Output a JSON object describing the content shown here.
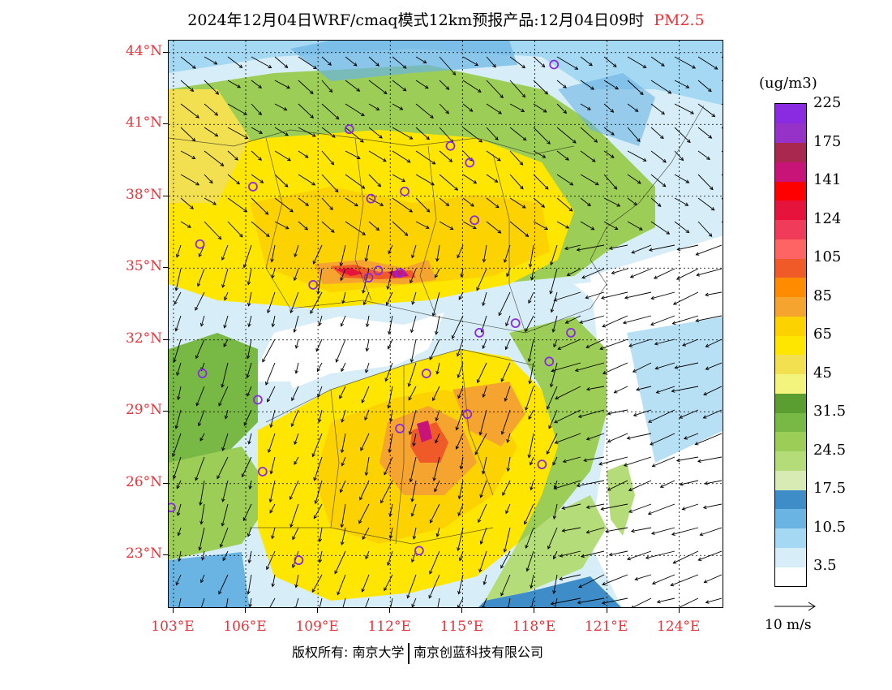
{
  "title": {
    "main": "2024年12月04日WRF/cmaq模式12km预报产品:12月04日09时",
    "pollutant": "PM2.5"
  },
  "map": {
    "lat_labels": [
      "44°N",
      "41°N",
      "38°N",
      "35°N",
      "32°N",
      "29°N",
      "26°N",
      "23°N"
    ],
    "lon_labels": [
      "103°E",
      "106°E",
      "109°E",
      "112°E",
      "115°E",
      "118°E",
      "121°E",
      "124°E"
    ],
    "lat_values": [
      44,
      41,
      38,
      35,
      32,
      29,
      26,
      23
    ],
    "lon_values": [
      103,
      106,
      109,
      112,
      115,
      118,
      121,
      124
    ],
    "cities": [
      {
        "lon": 118.8,
        "lat": 43.5
      },
      {
        "lon": 110.3,
        "lat": 40.8
      },
      {
        "lon": 114.5,
        "lat": 40.1
      },
      {
        "lon": 115.3,
        "lat": 39.4
      },
      {
        "lon": 106.3,
        "lat": 38.4
      },
      {
        "lon": 111.2,
        "lat": 37.9
      },
      {
        "lon": 112.6,
        "lat": 38.2
      },
      {
        "lon": 115.5,
        "lat": 37.0
      },
      {
        "lon": 104.1,
        "lat": 36.0
      },
      {
        "lon": 108.8,
        "lat": 34.3
      },
      {
        "lon": 111.1,
        "lat": 34.6
      },
      {
        "lon": 111.5,
        "lat": 34.9
      },
      {
        "lon": 112.4,
        "lat": 34.8
      },
      {
        "lon": 117.2,
        "lat": 32.7
      },
      {
        "lon": 115.7,
        "lat": 32.3
      },
      {
        "lon": 119.5,
        "lat": 32.3
      },
      {
        "lon": 118.6,
        "lat": 31.1
      },
      {
        "lon": 113.5,
        "lat": 30.6
      },
      {
        "lon": 104.2,
        "lat": 30.6
      },
      {
        "lon": 106.5,
        "lat": 29.5
      },
      {
        "lon": 112.4,
        "lat": 28.3
      },
      {
        "lon": 115.2,
        "lat": 28.9
      },
      {
        "lon": 118.3,
        "lat": 26.8
      },
      {
        "lon": 106.7,
        "lat": 26.5
      },
      {
        "lon": 102.9,
        "lat": 25.0
      },
      {
        "lon": 108.2,
        "lat": 22.8
      },
      {
        "lon": 113.2,
        "lat": 23.2
      }
    ],
    "city_color": "#8a2be2"
  },
  "colorbar": {
    "unit": "(ug/m3)",
    "colors": [
      "#ffffff",
      "#d7eef8",
      "#a5d8f2",
      "#6ab4e4",
      "#3e8cc8",
      "#d8ebb4",
      "#b4dc78",
      "#9ccd56",
      "#78b845",
      "#5a9e32",
      "#f2f47e",
      "#f2e050",
      "#ffe600",
      "#fcd200",
      "#f6a430",
      "#ff8c00",
      "#f05a28",
      "#ff6464",
      "#f03c5a",
      "#e6143c",
      "#ff0000",
      "#c81478",
      "#a82850",
      "#9632c8",
      "#8a2be2"
    ],
    "labels": [
      "3.5",
      "10.5",
      "17.5",
      "24.5",
      "31.5",
      "45",
      "65",
      "85",
      "105",
      "124",
      "141",
      "175",
      "225"
    ]
  },
  "wind_reference": {
    "label": "10 m/s"
  },
  "footer": {
    "copyright": "版权所有: 南京大学",
    "company": "南京创蓝科技有限公司"
  }
}
